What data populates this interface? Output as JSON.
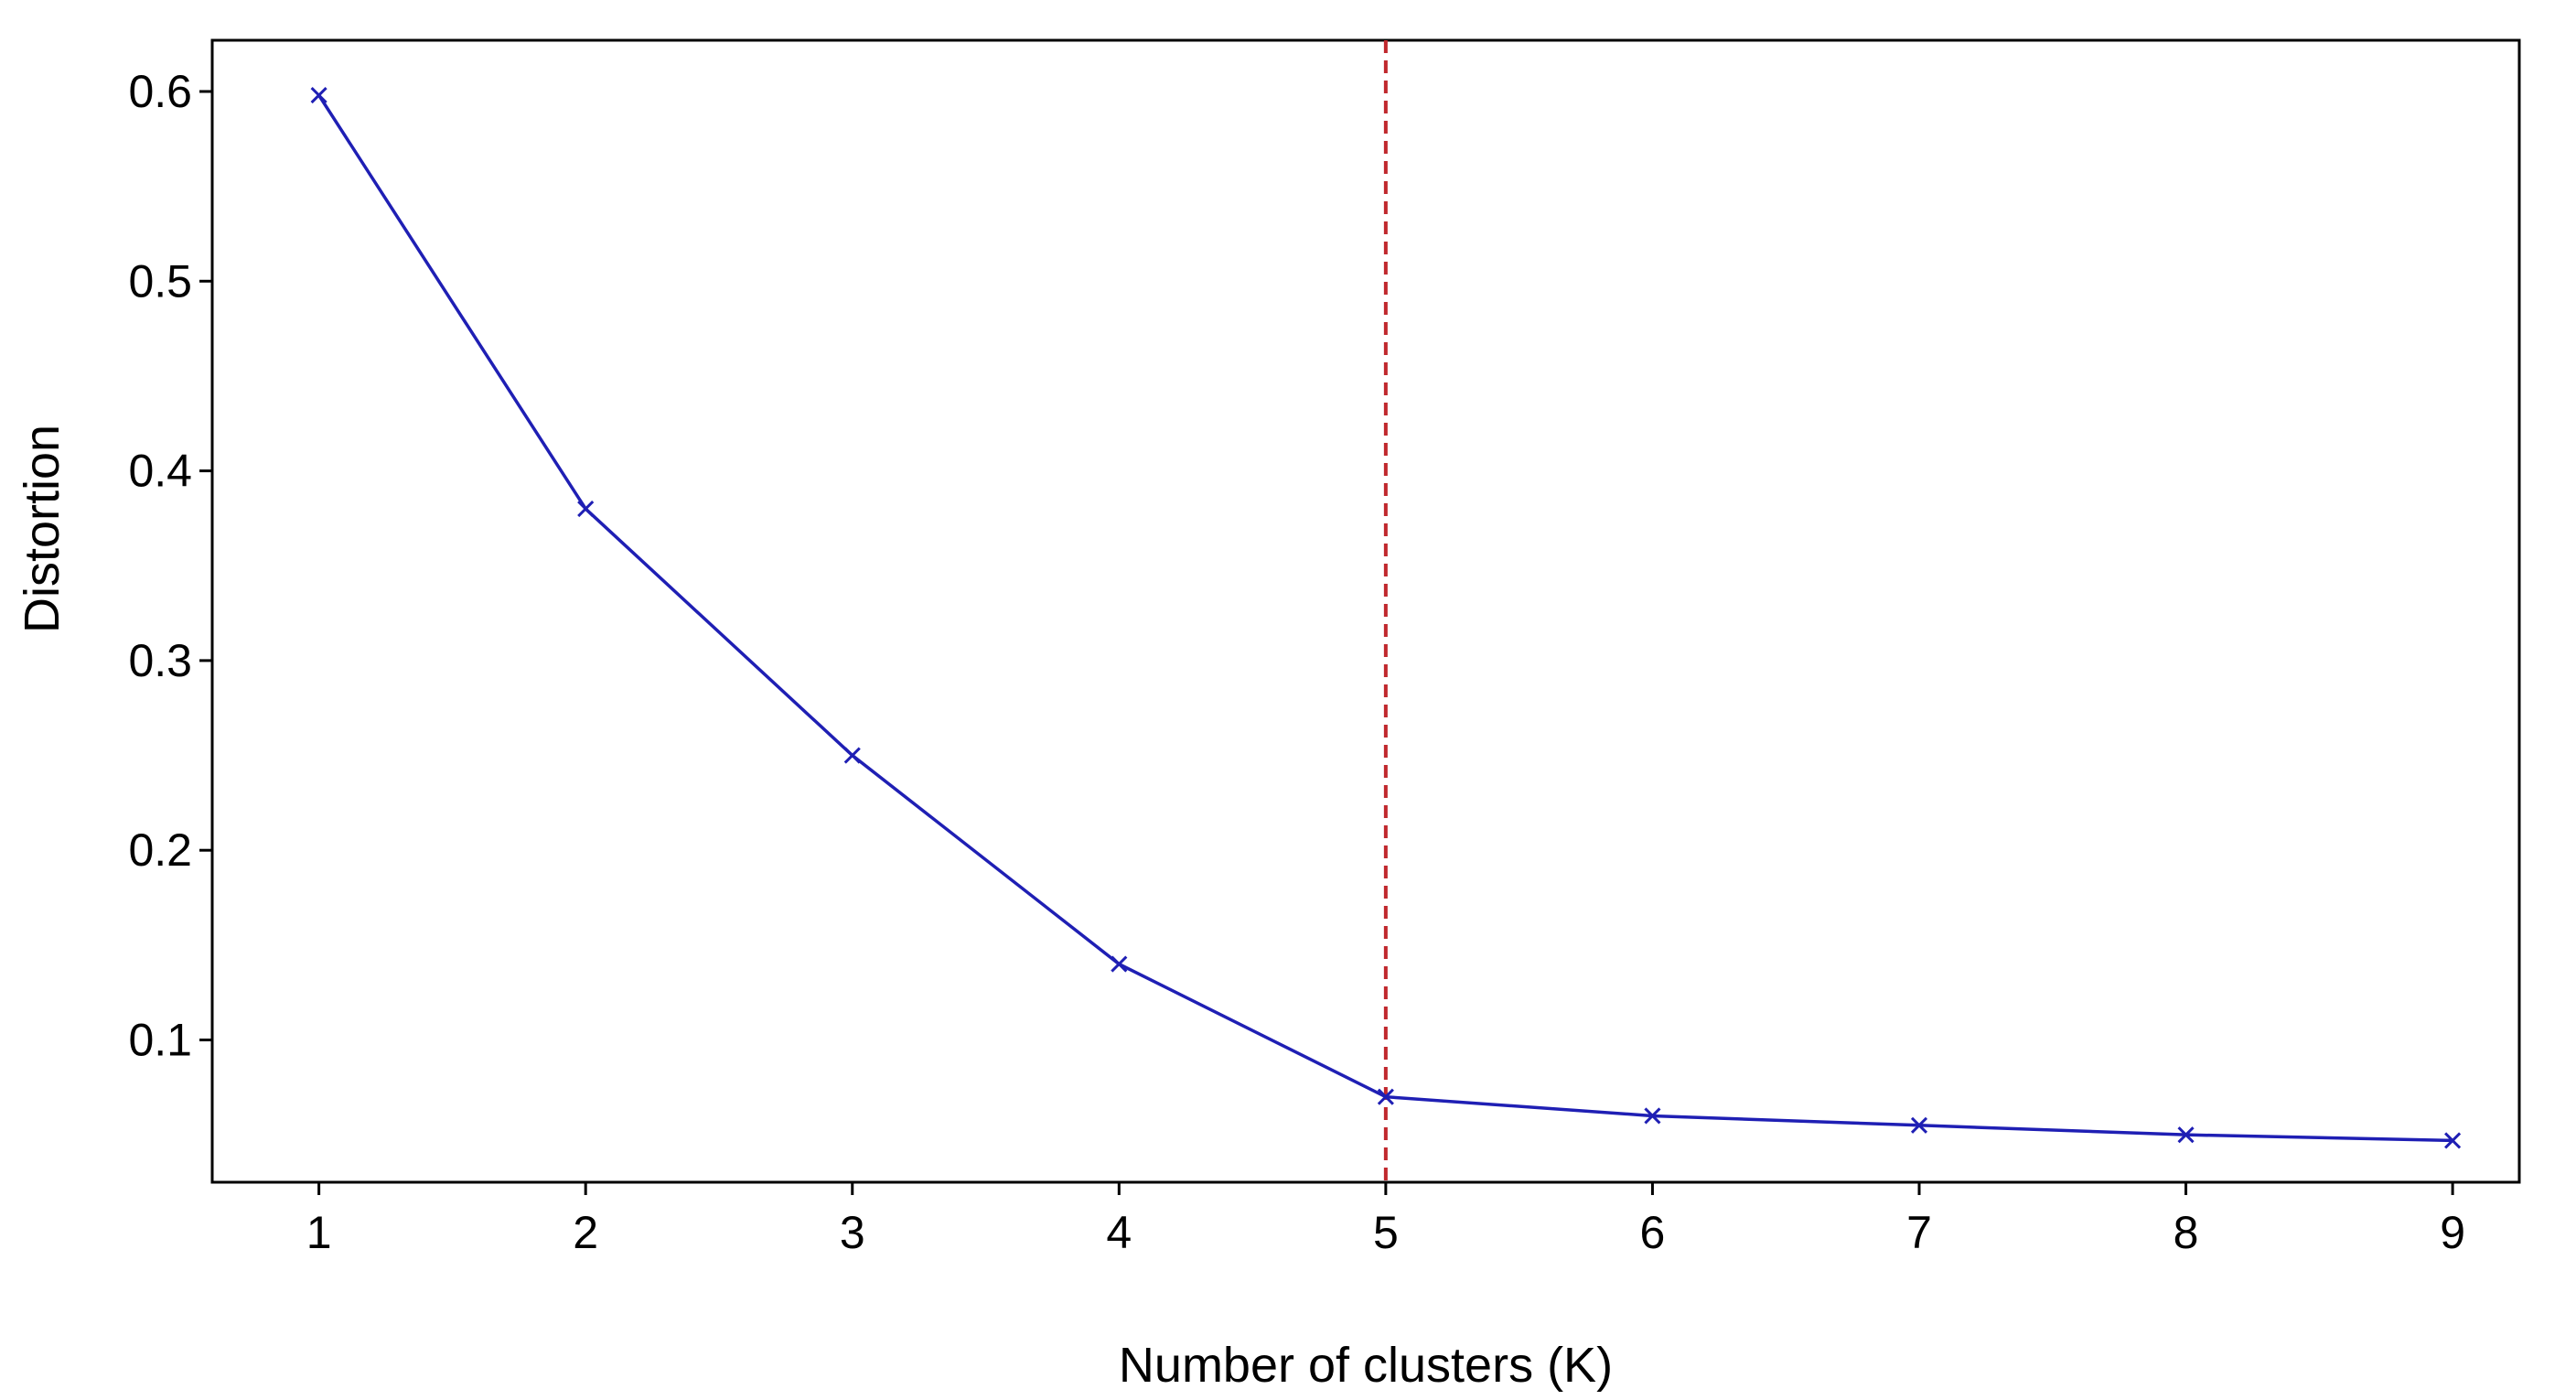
{
  "chart_data": {
    "type": "line",
    "title": "",
    "xlabel": "Number of clusters (K)",
    "ylabel": "Distortion",
    "x": [
      1,
      2,
      3,
      4,
      5,
      6,
      7,
      8,
      9
    ],
    "xlim": [
      0.6,
      9.25
    ],
    "ylim": [
      0.025,
      0.627
    ],
    "xticks": [
      1,
      2,
      3,
      4,
      5,
      6,
      7,
      8,
      9
    ],
    "yticks": [
      0.1,
      0.2,
      0.3,
      0.4,
      0.5,
      0.6
    ],
    "ytick_labels": [
      "0.1",
      "0.2",
      "0.3",
      "0.4",
      "0.5",
      "0.6"
    ],
    "series": [
      {
        "values": [
          0.598,
          0.38,
          0.25,
          0.14,
          0.07,
          0.06,
          0.055,
          0.05,
          0.047
        ],
        "color": "#1f1fb4",
        "marker": "x"
      }
    ],
    "reference_line": {
      "x": 5,
      "color": "#c0282d",
      "style": "dashed"
    },
    "grid": false,
    "legend": "none"
  }
}
